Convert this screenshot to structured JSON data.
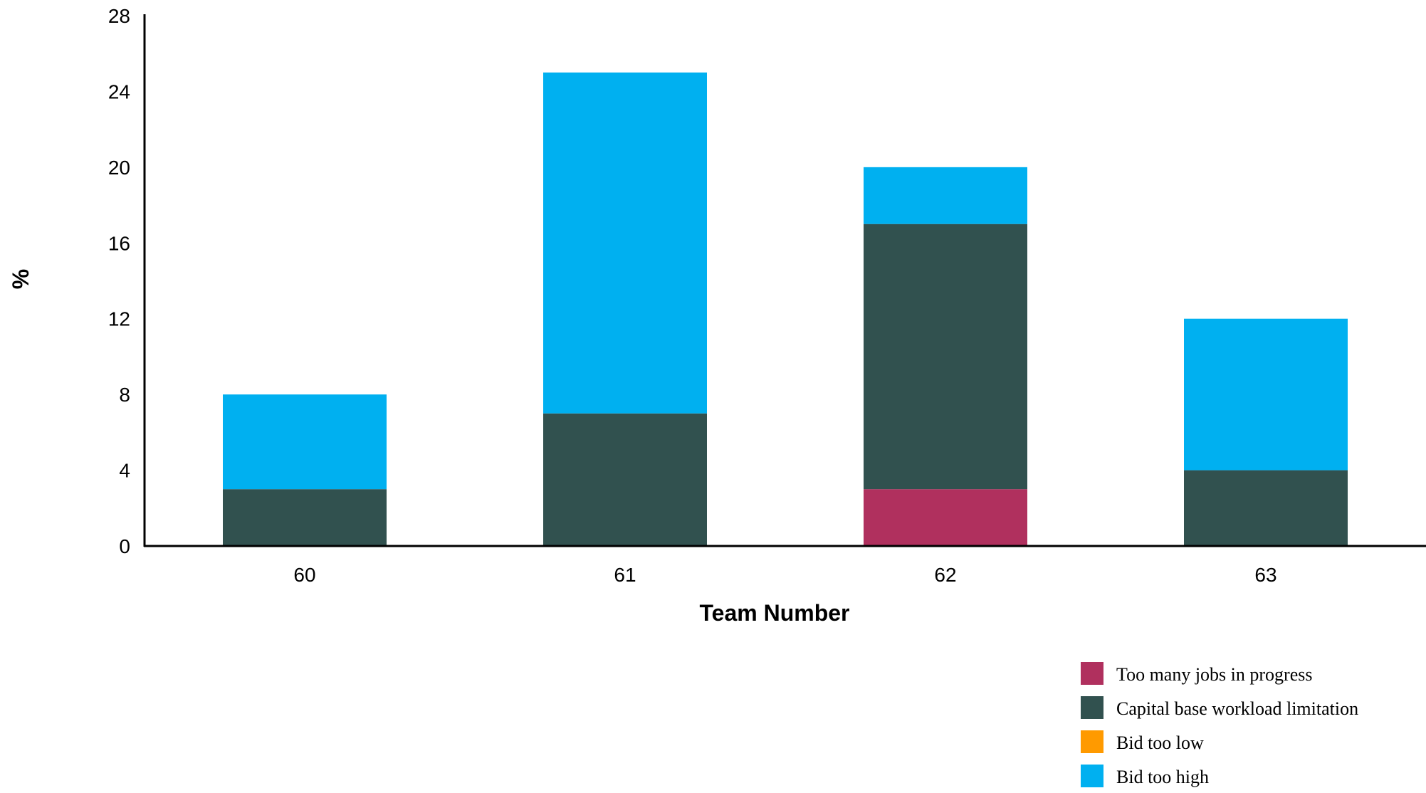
{
  "chart_data": {
    "type": "bar",
    "stacked": true,
    "title": "",
    "xlabel": "Team Number",
    "ylabel": "%",
    "categories": [
      "60",
      "61",
      "62",
      "63"
    ],
    "ylim": [
      0,
      28
    ],
    "yticks": [
      0,
      4,
      8,
      12,
      16,
      20,
      24,
      28
    ],
    "grid": false,
    "legend_position": "bottom-right",
    "series": [
      {
        "name": "Too many jobs in progress",
        "color": "#b0305e",
        "values": [
          0,
          0,
          3,
          0
        ]
      },
      {
        "name": "Capital base workload limitation",
        "color": "#31514f",
        "values": [
          3,
          7,
          14,
          4
        ]
      },
      {
        "name": "Bid too low",
        "color": "#ff9a00",
        "values": [
          0,
          0,
          0,
          0
        ]
      },
      {
        "name": "Bid too high",
        "color": "#00b0f0",
        "values": [
          5,
          18,
          3,
          8
        ]
      }
    ]
  }
}
